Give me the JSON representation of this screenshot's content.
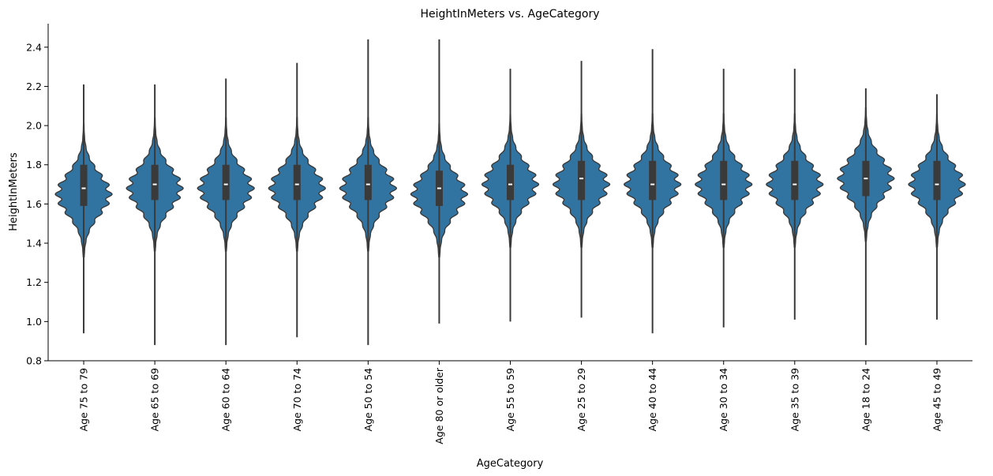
{
  "chart_data": {
    "type": "violin",
    "title": "HeightInMeters vs. AgeCategory",
    "xlabel": "AgeCategory",
    "ylabel": "HeightInMeters",
    "ylim": [
      0.8,
      2.52
    ],
    "yticks": [
      0.8,
      1.0,
      1.2,
      1.4,
      1.6,
      1.8,
      2.0,
      2.2,
      2.4
    ],
    "grid": false,
    "colors": {
      "violin_fill": "#3274a1",
      "edge": "#3a3a3a",
      "median": "#ffffff"
    },
    "categories": [
      "Age 75 to 79",
      "Age 65 to 69",
      "Age 60 to 64",
      "Age 70 to 74",
      "Age 50 to 54",
      "Age 80 or older",
      "Age 55 to 59",
      "Age 25 to 29",
      "Age 40 to 44",
      "Age 30 to 34",
      "Age 35 to 39",
      "Age 18 to 24",
      "Age 45 to 49"
    ],
    "stats": [
      {
        "min": 0.94,
        "max": 2.21,
        "q1": 1.59,
        "median": 1.68,
        "q3": 1.8,
        "peak": 1.65
      },
      {
        "min": 0.88,
        "max": 2.21,
        "q1": 1.62,
        "median": 1.7,
        "q3": 1.8,
        "peak": 1.68
      },
      {
        "min": 0.88,
        "max": 2.24,
        "q1": 1.62,
        "median": 1.7,
        "q3": 1.8,
        "peak": 1.68
      },
      {
        "min": 0.92,
        "max": 2.32,
        "q1": 1.62,
        "median": 1.7,
        "q3": 1.8,
        "peak": 1.68
      },
      {
        "min": 0.88,
        "max": 2.44,
        "q1": 1.62,
        "median": 1.7,
        "q3": 1.8,
        "peak": 1.68
      },
      {
        "min": 0.99,
        "max": 2.44,
        "q1": 1.59,
        "median": 1.68,
        "q3": 1.77,
        "peak": 1.65
      },
      {
        "min": 1.0,
        "max": 2.29,
        "q1": 1.62,
        "median": 1.7,
        "q3": 1.8,
        "peak": 1.7
      },
      {
        "min": 1.02,
        "max": 2.33,
        "q1": 1.62,
        "median": 1.73,
        "q3": 1.82,
        "peak": 1.7
      },
      {
        "min": 0.94,
        "max": 2.39,
        "q1": 1.62,
        "median": 1.7,
        "q3": 1.82,
        "peak": 1.7
      },
      {
        "min": 0.97,
        "max": 2.29,
        "q1": 1.62,
        "median": 1.7,
        "q3": 1.82,
        "peak": 1.7
      },
      {
        "min": 1.01,
        "max": 2.29,
        "q1": 1.62,
        "median": 1.7,
        "q3": 1.82,
        "peak": 1.7
      },
      {
        "min": 0.88,
        "max": 2.19,
        "q1": 1.64,
        "median": 1.73,
        "q3": 1.82,
        "peak": 1.73
      },
      {
        "min": 1.01,
        "max": 2.16,
        "q1": 1.62,
        "median": 1.7,
        "q3": 1.82,
        "peak": 1.7
      }
    ]
  }
}
